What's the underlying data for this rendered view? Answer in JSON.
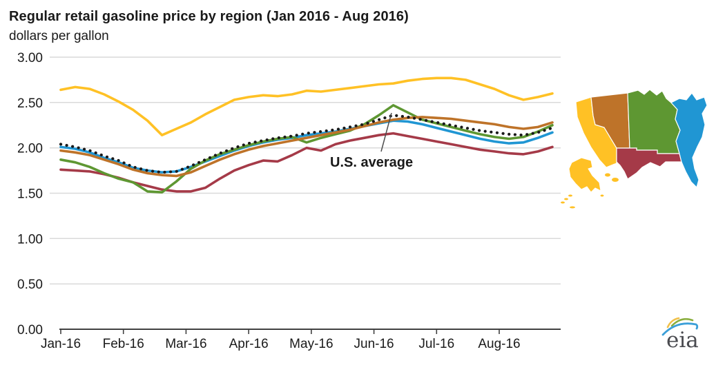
{
  "header": {
    "title": "Regular retail gasoline price by region (Jan 2016 - Aug 2016)",
    "subtitle": "dollars per gallon"
  },
  "chart_data": {
    "type": "line",
    "title": "Regular retail gasoline price by region (Jan 2016 - Aug 2016)",
    "ylabel": "dollars per gallon",
    "ylim": [
      0,
      3.0
    ],
    "yticks": [
      3.0,
      2.5,
      2.0,
      1.5,
      1.0,
      0.5,
      0.0
    ],
    "ytick_labels": [
      "3.00",
      "2.50",
      "2.00",
      "1.50",
      "1.00",
      "0.50",
      "0.00"
    ],
    "x_tick_labels": [
      "Jan-16",
      "Feb-16",
      "Mar-16",
      "Apr-16",
      "May-16",
      "Jun-16",
      "Jul-16",
      "Aug-16"
    ],
    "x_frequency": "weekly",
    "grid": true,
    "legend": "map of U.S. PADD regions colored to match series",
    "annotation": {
      "text": "U.S. average",
      "points_to_series": "us-average"
    },
    "series": [
      {
        "id": "gulf-coast",
        "name": "Gulf Coast",
        "color": "#A53A48",
        "style": "solid",
        "values": [
          1.76,
          1.75,
          1.74,
          1.71,
          1.67,
          1.62,
          1.58,
          1.54,
          1.52,
          1.52,
          1.56,
          1.66,
          1.75,
          1.81,
          1.86,
          1.85,
          1.92,
          2.0,
          1.97,
          2.04,
          2.08,
          2.11,
          2.14,
          2.16,
          2.13,
          2.1,
          2.07,
          2.04,
          2.01,
          1.98,
          1.96,
          1.94,
          1.93,
          1.96,
          2.01
        ]
      },
      {
        "id": "east-coast",
        "name": "East Coast",
        "color": "#2096D3",
        "style": "solid",
        "values": [
          2.01,
          1.99,
          1.95,
          1.89,
          1.84,
          1.78,
          1.75,
          1.73,
          1.74,
          1.79,
          1.85,
          1.91,
          1.97,
          2.02,
          2.06,
          2.09,
          2.11,
          2.14,
          2.16,
          2.18,
          2.21,
          2.24,
          2.27,
          2.3,
          2.29,
          2.26,
          2.22,
          2.18,
          2.14,
          2.1,
          2.07,
          2.05,
          2.06,
          2.11,
          2.17
        ]
      },
      {
        "id": "midwest",
        "name": "Midwest",
        "color": "#5E9732",
        "style": "solid",
        "values": [
          1.87,
          1.84,
          1.79,
          1.72,
          1.66,
          1.62,
          1.52,
          1.51,
          1.63,
          1.77,
          1.86,
          1.93,
          1.98,
          2.03,
          2.07,
          2.1,
          2.12,
          2.06,
          2.11,
          2.15,
          2.19,
          2.26,
          2.36,
          2.47,
          2.39,
          2.31,
          2.27,
          2.23,
          2.19,
          2.15,
          2.12,
          2.1,
          2.12,
          2.18,
          2.25
        ]
      },
      {
        "id": "rocky-mountain",
        "name": "Rocky Mountain",
        "color": "#BE7329",
        "style": "solid",
        "values": [
          1.97,
          1.95,
          1.92,
          1.87,
          1.82,
          1.76,
          1.72,
          1.7,
          1.69,
          1.73,
          1.8,
          1.87,
          1.93,
          1.98,
          2.02,
          2.05,
          2.08,
          2.11,
          2.14,
          2.17,
          2.2,
          2.24,
          2.28,
          2.31,
          2.33,
          2.34,
          2.33,
          2.32,
          2.3,
          2.28,
          2.26,
          2.23,
          2.21,
          2.23,
          2.28
        ]
      },
      {
        "id": "west-coast",
        "name": "West Coast",
        "color": "#FFC125",
        "style": "solid",
        "values": [
          2.64,
          2.67,
          2.65,
          2.59,
          2.51,
          2.42,
          2.3,
          2.14,
          2.21,
          2.28,
          2.37,
          2.45,
          2.53,
          2.56,
          2.58,
          2.57,
          2.59,
          2.63,
          2.62,
          2.64,
          2.66,
          2.68,
          2.7,
          2.71,
          2.74,
          2.76,
          2.77,
          2.77,
          2.75,
          2.7,
          2.65,
          2.58,
          2.53,
          2.56,
          2.6
        ]
      },
      {
        "id": "us-average",
        "name": "U.S. average",
        "color": "#1A1A1A",
        "style": "dotted",
        "values": [
          2.04,
          2.01,
          1.97,
          1.91,
          1.86,
          1.79,
          1.75,
          1.73,
          1.74,
          1.8,
          1.87,
          1.94,
          2.0,
          2.05,
          2.08,
          2.11,
          2.13,
          2.16,
          2.18,
          2.2,
          2.23,
          2.26,
          2.31,
          2.36,
          2.34,
          2.31,
          2.28,
          2.25,
          2.22,
          2.19,
          2.17,
          2.15,
          2.14,
          2.17,
          2.22
        ]
      }
    ],
    "colors": {
      "grid": "#D9D9D9",
      "axis": "#404040",
      "text": "#1A1A1A"
    }
  },
  "map": {
    "name": "U.S. PADD regions map",
    "regions": [
      {
        "id": "west-coast",
        "label": "West Coast",
        "color": "#FFC125"
      },
      {
        "id": "rocky-mountain",
        "label": "Rocky Mountain",
        "color": "#BE7329"
      },
      {
        "id": "midwest",
        "label": "Midwest",
        "color": "#5E9732"
      },
      {
        "id": "gulf-coast",
        "label": "Gulf Coast",
        "color": "#A53A48"
      },
      {
        "id": "east-coast",
        "label": "East Coast",
        "color": "#2096D3"
      }
    ]
  },
  "logo": {
    "text": "eia"
  }
}
